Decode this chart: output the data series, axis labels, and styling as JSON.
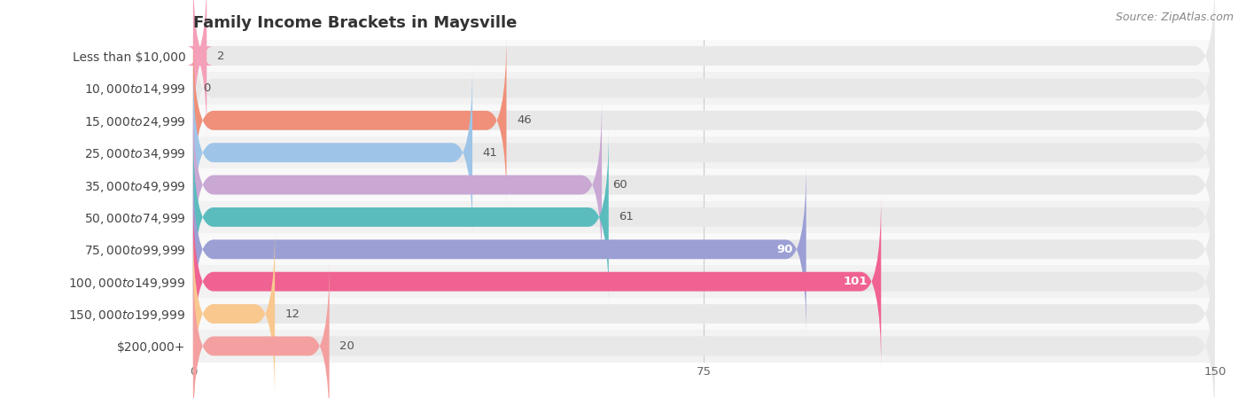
{
  "title": "Family Income Brackets in Maysville",
  "source": "Source: ZipAtlas.com",
  "categories": [
    "Less than $10,000",
    "$10,000 to $14,999",
    "$15,000 to $24,999",
    "$25,000 to $34,999",
    "$35,000 to $49,999",
    "$50,000 to $74,999",
    "$75,000 to $99,999",
    "$100,000 to $149,999",
    "$150,000 to $199,999",
    "$200,000+"
  ],
  "values": [
    2,
    0,
    46,
    41,
    60,
    61,
    90,
    101,
    12,
    20
  ],
  "bar_colors": [
    "#f4a0b8",
    "#f9c88e",
    "#f0907a",
    "#9ec5e8",
    "#c9a8d4",
    "#5bbcbe",
    "#9b9fd4",
    "#f06292",
    "#f9c88e",
    "#f4a0a0"
  ],
  "xlim": [
    0,
    150
  ],
  "xticks": [
    0,
    75,
    150
  ],
  "bar_bg_color": "#e8e8e8",
  "row_bg_colors": [
    "#f9f9f9",
    "#f2f2f2"
  ],
  "title_fontsize": 13,
  "label_fontsize": 10,
  "value_fontsize": 9.5,
  "source_fontsize": 9,
  "figure_bg": "#ffffff",
  "bar_height": 0.6,
  "value_inside_threshold": 80
}
